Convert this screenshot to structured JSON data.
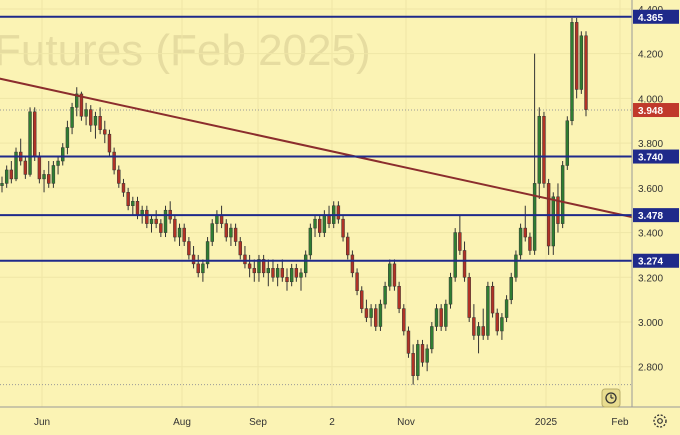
{
  "chart_data": {
    "type": "candlestick",
    "watermark": "Futures (Feb 2025)",
    "ylim": [
      2.62,
      4.44
    ],
    "y_ticks": [
      "4.400",
      "4.200",
      "4.000",
      "3.800",
      "3.600",
      "3.400",
      "3.200",
      "3.000",
      "2.800"
    ],
    "x_ticks": [
      "Jun",
      "Aug",
      "Sep",
      "2",
      "Nov",
      "2025",
      "Feb"
    ],
    "levels": [
      {
        "label": "4.365",
        "value": 4.365
      },
      {
        "label": "3.740",
        "value": 3.74
      },
      {
        "label": "3.478",
        "value": 3.478
      },
      {
        "label": "3.274",
        "value": 3.274
      }
    ],
    "last_price": {
      "label": "3.948",
      "value": 3.948
    },
    "trendline": {
      "start": {
        "date": "2024-04-20",
        "value": 4.13
      },
      "end": {
        "date": "2025-02-06",
        "value": 3.45
      }
    },
    "dotted_lines": [
      3.948,
      2.72
    ],
    "candles": [
      [
        3.61,
        3.65,
        3.58,
        3.62
      ],
      [
        3.62,
        3.7,
        3.6,
        3.68
      ],
      [
        3.68,
        3.72,
        3.62,
        3.64
      ],
      [
        3.64,
        3.78,
        3.63,
        3.76
      ],
      [
        3.76,
        3.82,
        3.7,
        3.72
      ],
      [
        3.72,
        3.74,
        3.64,
        3.66
      ],
      [
        3.66,
        3.96,
        3.65,
        3.94
      ],
      [
        3.94,
        3.96,
        3.72,
        3.74
      ],
      [
        3.74,
        3.76,
        3.62,
        3.64
      ],
      [
        3.64,
        3.68,
        3.58,
        3.66
      ],
      [
        3.66,
        3.72,
        3.6,
        3.62
      ],
      [
        3.62,
        3.72,
        3.6,
        3.7
      ],
      [
        3.7,
        3.74,
        3.66,
        3.72
      ],
      [
        3.72,
        3.8,
        3.7,
        3.78
      ],
      [
        3.78,
        3.9,
        3.75,
        3.87
      ],
      [
        3.87,
        3.98,
        3.84,
        3.96
      ],
      [
        3.96,
        4.05,
        3.92,
        4.02
      ],
      [
        4.02,
        4.03,
        3.9,
        3.92
      ],
      [
        3.92,
        3.98,
        3.88,
        3.95
      ],
      [
        3.95,
        3.97,
        3.85,
        3.88
      ],
      [
        3.88,
        3.94,
        3.82,
        3.92
      ],
      [
        3.92,
        3.96,
        3.84,
        3.86
      ],
      [
        3.86,
        3.9,
        3.8,
        3.84
      ],
      [
        3.84,
        3.86,
        3.74,
        3.76
      ],
      [
        3.76,
        3.78,
        3.66,
        3.68
      ],
      [
        3.68,
        3.7,
        3.6,
        3.62
      ],
      [
        3.62,
        3.64,
        3.56,
        3.58
      ],
      [
        3.58,
        3.6,
        3.5,
        3.52
      ],
      [
        3.52,
        3.56,
        3.48,
        3.54
      ],
      [
        3.54,
        3.56,
        3.46,
        3.48
      ],
      [
        3.48,
        3.52,
        3.44,
        3.5
      ],
      [
        3.5,
        3.52,
        3.42,
        3.44
      ],
      [
        3.44,
        3.48,
        3.4,
        3.46
      ],
      [
        3.46,
        3.5,
        3.42,
        3.44
      ],
      [
        3.44,
        3.46,
        3.38,
        3.4
      ],
      [
        3.4,
        3.52,
        3.38,
        3.5
      ],
      [
        3.5,
        3.54,
        3.44,
        3.46
      ],
      [
        3.46,
        3.48,
        3.36,
        3.38
      ],
      [
        3.38,
        3.44,
        3.34,
        3.42
      ],
      [
        3.42,
        3.44,
        3.34,
        3.36
      ],
      [
        3.36,
        3.38,
        3.28,
        3.3
      ],
      [
        3.3,
        3.34,
        3.24,
        3.26
      ],
      [
        3.26,
        3.3,
        3.2,
        3.22
      ],
      [
        3.22,
        3.28,
        3.18,
        3.26
      ],
      [
        3.26,
        3.38,
        3.24,
        3.36
      ],
      [
        3.36,
        3.46,
        3.34,
        3.44
      ],
      [
        3.44,
        3.5,
        3.4,
        3.48
      ],
      [
        3.48,
        3.52,
        3.42,
        3.44
      ],
      [
        3.44,
        3.46,
        3.36,
        3.38
      ],
      [
        3.38,
        3.44,
        3.34,
        3.42
      ],
      [
        3.42,
        3.44,
        3.34,
        3.36
      ],
      [
        3.36,
        3.38,
        3.28,
        3.3
      ],
      [
        3.3,
        3.34,
        3.24,
        3.26
      ],
      [
        3.26,
        3.3,
        3.2,
        3.24
      ],
      [
        3.24,
        3.28,
        3.18,
        3.22
      ],
      [
        3.22,
        3.3,
        3.18,
        3.28
      ],
      [
        3.28,
        3.3,
        3.2,
        3.22
      ],
      [
        3.22,
        3.28,
        3.16,
        3.24
      ],
      [
        3.24,
        3.28,
        3.18,
        3.2
      ],
      [
        3.2,
        3.26,
        3.16,
        3.24
      ],
      [
        3.24,
        3.28,
        3.18,
        3.2
      ],
      [
        3.2,
        3.24,
        3.14,
        3.18
      ],
      [
        3.18,
        3.26,
        3.16,
        3.24
      ],
      [
        3.24,
        3.26,
        3.18,
        3.2
      ],
      [
        3.2,
        3.24,
        3.14,
        3.22
      ],
      [
        3.22,
        3.32,
        3.2,
        3.3
      ],
      [
        3.3,
        3.44,
        3.28,
        3.42
      ],
      [
        3.42,
        3.48,
        3.38,
        3.46
      ],
      [
        3.46,
        3.48,
        3.38,
        3.4
      ],
      [
        3.4,
        3.5,
        3.38,
        3.48
      ],
      [
        3.48,
        3.52,
        3.42,
        3.44
      ],
      [
        3.44,
        3.54,
        3.42,
        3.52
      ],
      [
        3.52,
        3.54,
        3.44,
        3.46
      ],
      [
        3.46,
        3.48,
        3.36,
        3.38
      ],
      [
        3.38,
        3.4,
        3.28,
        3.3
      ],
      [
        3.3,
        3.32,
        3.2,
        3.22
      ],
      [
        3.22,
        3.24,
        3.12,
        3.14
      ],
      [
        3.14,
        3.16,
        3.04,
        3.06
      ],
      [
        3.06,
        3.1,
        3.0,
        3.02
      ],
      [
        3.02,
        3.08,
        2.98,
        3.06
      ],
      [
        3.06,
        3.08,
        2.96,
        2.98
      ],
      [
        2.98,
        3.1,
        2.96,
        3.08
      ],
      [
        3.08,
        3.18,
        3.06,
        3.16
      ],
      [
        3.16,
        3.28,
        3.14,
        3.26
      ],
      [
        3.26,
        3.28,
        3.14,
        3.16
      ],
      [
        3.16,
        3.18,
        3.04,
        3.06
      ],
      [
        3.06,
        3.08,
        2.94,
        2.96
      ],
      [
        2.96,
        2.98,
        2.84,
        2.86
      ],
      [
        2.86,
        2.9,
        2.72,
        2.76
      ],
      [
        2.76,
        2.92,
        2.74,
        2.9
      ],
      [
        2.9,
        2.92,
        2.8,
        2.82
      ],
      [
        2.82,
        2.9,
        2.78,
        2.88
      ],
      [
        2.88,
        3.0,
        2.86,
        2.98
      ],
      [
        2.98,
        3.08,
        2.96,
        3.06
      ],
      [
        3.06,
        3.08,
        2.96,
        2.98
      ],
      [
        2.98,
        3.1,
        2.96,
        3.08
      ],
      [
        3.08,
        3.22,
        3.06,
        3.2
      ],
      [
        3.2,
        3.42,
        3.18,
        3.4
      ],
      [
        3.4,
        3.48,
        3.3,
        3.32
      ],
      [
        3.32,
        3.36,
        3.18,
        3.2
      ],
      [
        3.2,
        3.22,
        3.0,
        3.02
      ],
      [
        3.02,
        3.08,
        2.92,
        2.94
      ],
      [
        2.94,
        3.0,
        2.86,
        2.98
      ],
      [
        2.98,
        3.06,
        2.92,
        2.94
      ],
      [
        2.94,
        3.18,
        2.92,
        3.16
      ],
      [
        3.16,
        3.18,
        3.02,
        3.04
      ],
      [
        3.04,
        3.06,
        2.94,
        2.96
      ],
      [
        2.96,
        3.04,
        2.92,
        3.02
      ],
      [
        3.02,
        3.12,
        3.0,
        3.1
      ],
      [
        3.1,
        3.22,
        3.08,
        3.2
      ],
      [
        3.2,
        3.32,
        3.18,
        3.3
      ],
      [
        3.3,
        3.44,
        3.28,
        3.42
      ],
      [
        3.42,
        3.52,
        3.36,
        3.38
      ],
      [
        3.38,
        3.4,
        3.3,
        3.32
      ],
      [
        3.32,
        4.2,
        3.3,
        3.62
      ],
      [
        3.62,
        3.96,
        3.55,
        3.92
      ],
      [
        3.92,
        3.94,
        3.6,
        3.62
      ],
      [
        3.62,
        3.64,
        3.3,
        3.34
      ],
      [
        3.34,
        3.58,
        3.3,
        3.56
      ],
      [
        3.56,
        3.62,
        3.4,
        3.44
      ],
      [
        3.44,
        3.72,
        3.42,
        3.7
      ],
      [
        3.7,
        3.92,
        3.68,
        3.9
      ],
      [
        3.9,
        4.36,
        3.88,
        4.34
      ],
      [
        4.34,
        4.36,
        4.0,
        4.04
      ],
      [
        4.04,
        4.3,
        4.02,
        4.28
      ],
      [
        4.28,
        4.3,
        3.92,
        3.95
      ]
    ]
  }
}
